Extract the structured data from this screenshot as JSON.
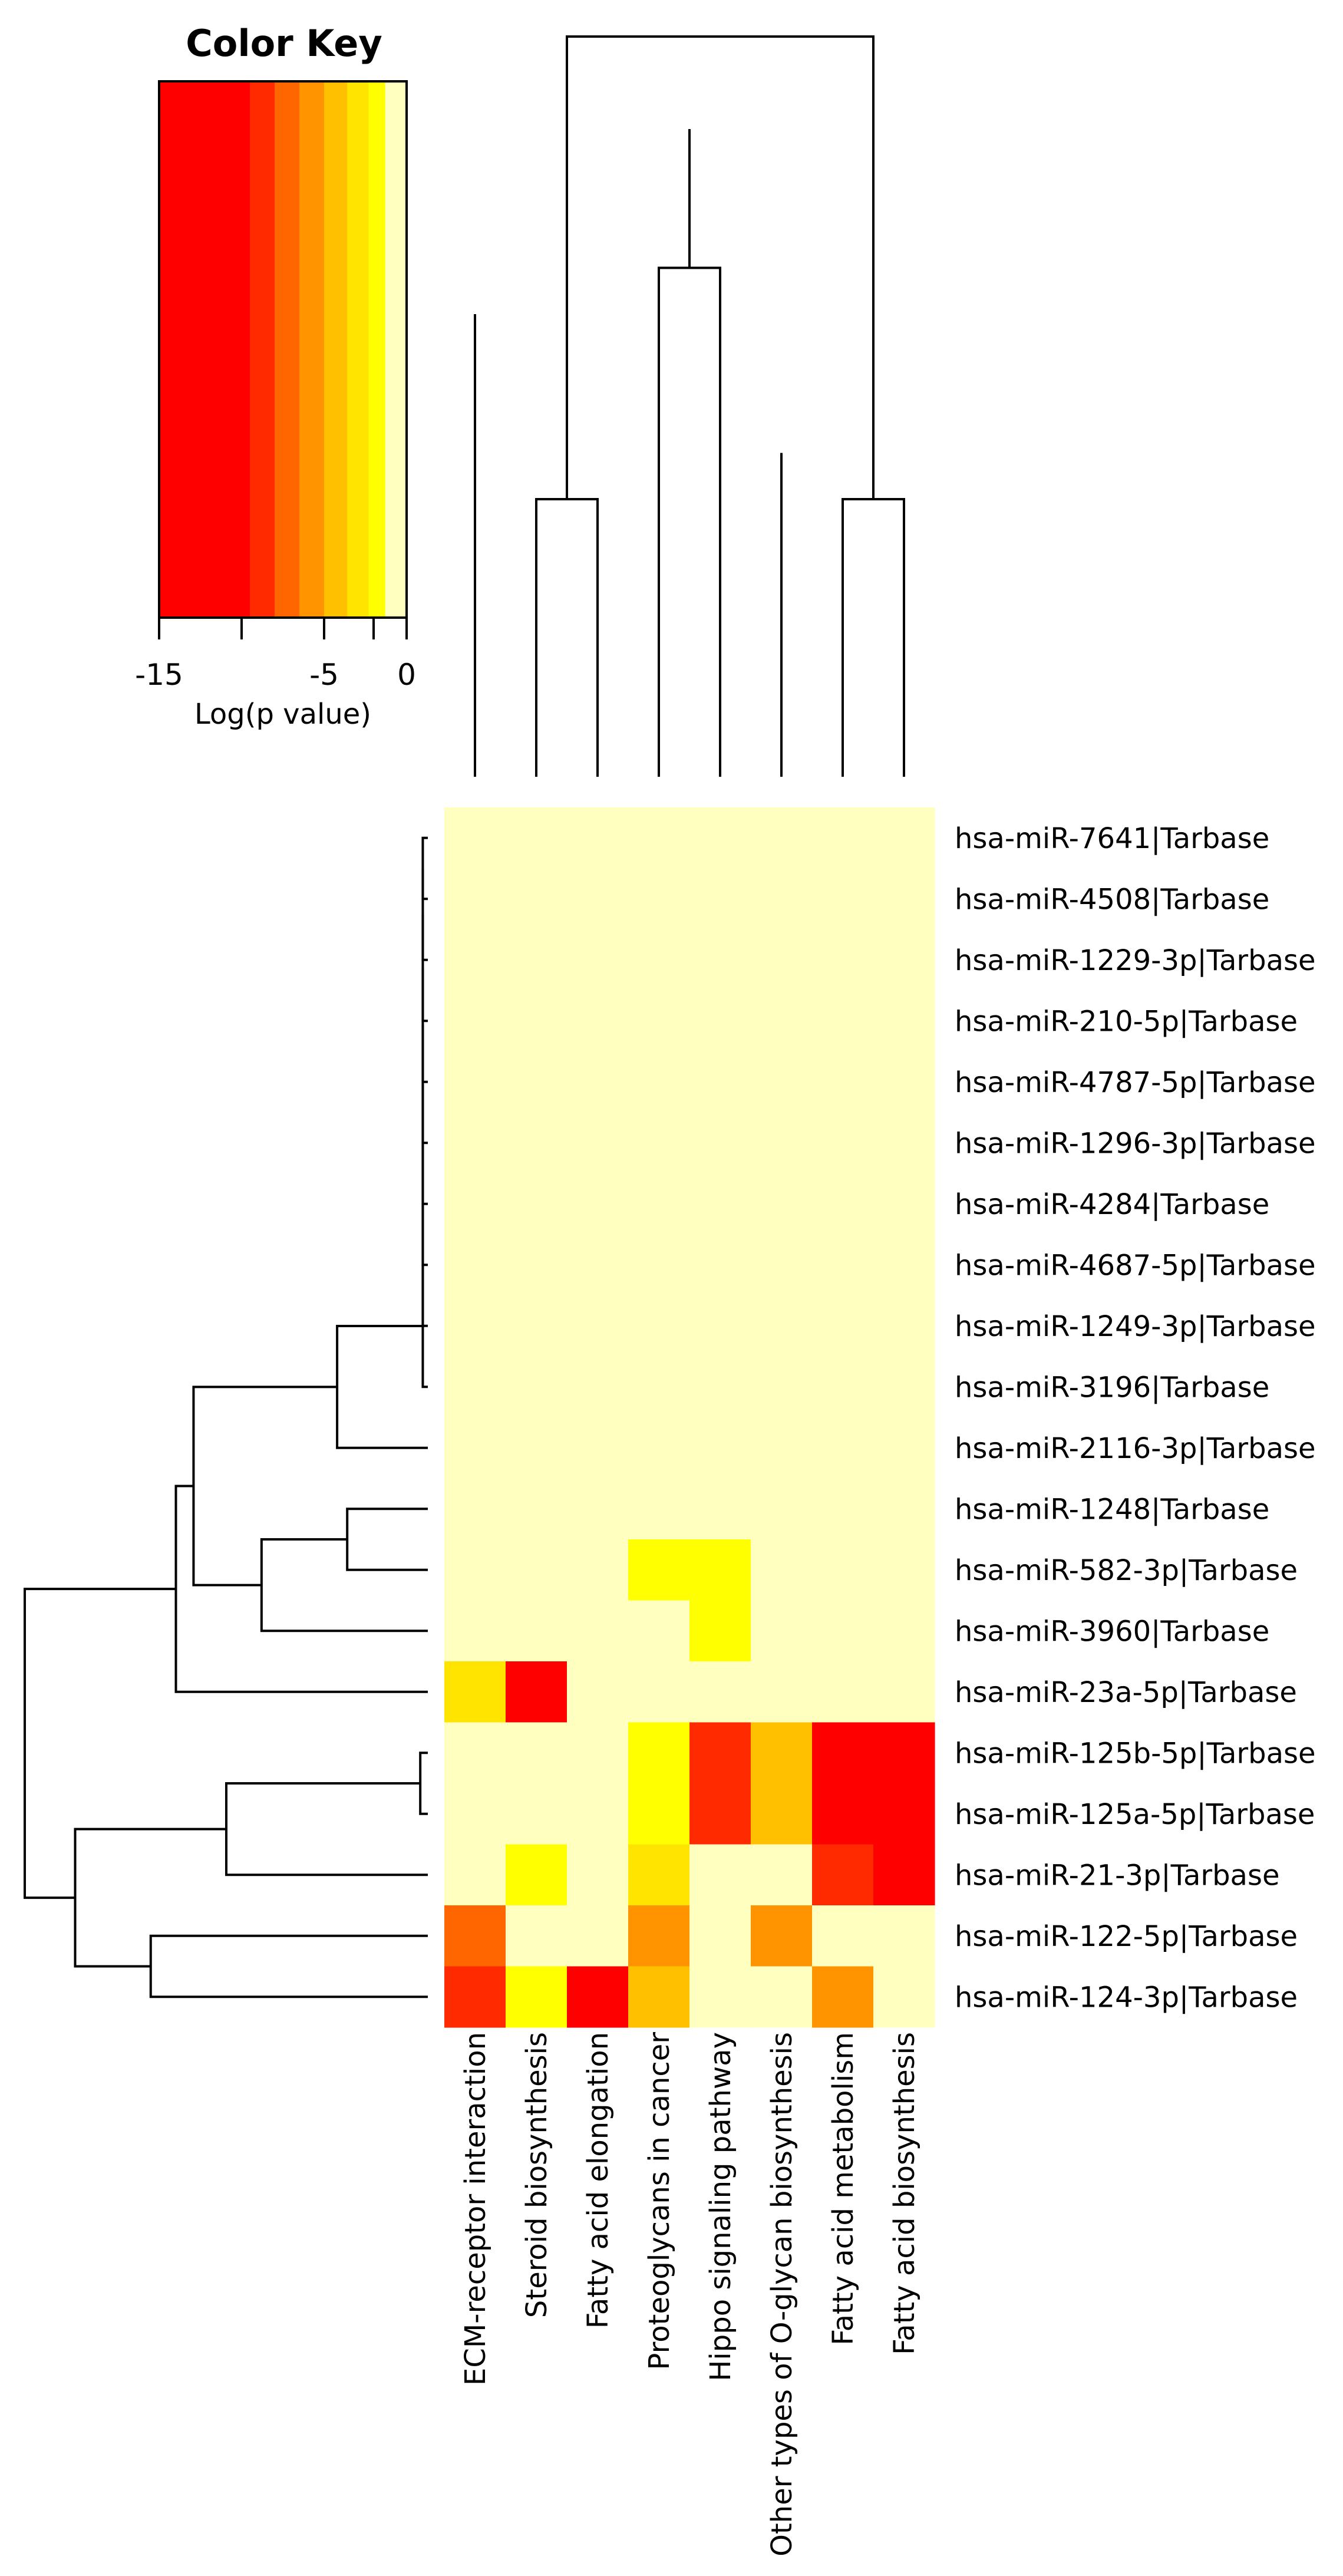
{
  "chart_data": {
    "type": "heatmap",
    "color_key": {
      "title": "Color Key",
      "xlabel": "Log(p value)",
      "ticks": [
        -15,
        -10,
        -5,
        -2,
        0
      ],
      "tick_labels": [
        "-15",
        "",
        "-5",
        "",
        "0"
      ],
      "range": [
        -15,
        0
      ],
      "bands": [
        {
          "from": -15,
          "to": -9.5,
          "color": "#FF0000"
        },
        {
          "from": -9.5,
          "to": -8,
          "color": "#FF2A00"
        },
        {
          "from": -8,
          "to": -6.5,
          "color": "#FF6600"
        },
        {
          "from": -6.5,
          "to": -5,
          "color": "#FF9400"
        },
        {
          "from": -5,
          "to": -3.6,
          "color": "#FFC000"
        },
        {
          "from": -3.6,
          "to": -2.3,
          "color": "#FFE400"
        },
        {
          "from": -2.3,
          "to": -1.3,
          "color": "#FFFF00"
        },
        {
          "from": -1.3,
          "to": 0,
          "color": "#FFFFC0"
        }
      ]
    },
    "columns": [
      "ECM-receptor interaction",
      "Steroid biosynthesis",
      "Fatty acid elongation",
      "Proteoglycans in cancer",
      "Hippo signaling pathway",
      "Other types of O-glycan biosynthesis",
      "Fatty acid metabolism",
      "Fatty acid biosynthesis"
    ],
    "rows": [
      "hsa-miR-7641|Tarbase",
      "hsa-miR-4508|Tarbase",
      "hsa-miR-1229-3p|Tarbase",
      "hsa-miR-210-5p|Tarbase",
      "hsa-miR-4787-5p|Tarbase",
      "hsa-miR-1296-3p|Tarbase",
      "hsa-miR-4284|Tarbase",
      "hsa-miR-4687-5p|Tarbase",
      "hsa-miR-1249-3p|Tarbase",
      "hsa-miR-3196|Tarbase",
      "hsa-miR-2116-3p|Tarbase",
      "hsa-miR-1248|Tarbase",
      "hsa-miR-582-3p|Tarbase",
      "hsa-miR-3960|Tarbase",
      "hsa-miR-23a-5p|Tarbase",
      "hsa-miR-125b-5p|Tarbase",
      "hsa-miR-125a-5p|Tarbase",
      "hsa-miR-21-3p|Tarbase",
      "hsa-miR-122-5p|Tarbase",
      "hsa-miR-124-3p|Tarbase"
    ],
    "values": [
      [
        0,
        0,
        0,
        0,
        0,
        0,
        0,
        0
      ],
      [
        0,
        0,
        0,
        0,
        0,
        0,
        0,
        0
      ],
      [
        0,
        0,
        0,
        0,
        0,
        0,
        0,
        0
      ],
      [
        0,
        0,
        0,
        0,
        0,
        0,
        0,
        0
      ],
      [
        0,
        0,
        0,
        0,
        0,
        0,
        0,
        0
      ],
      [
        0,
        0,
        0,
        0,
        0,
        0,
        0,
        0
      ],
      [
        0,
        0,
        0,
        0,
        0,
        0,
        0,
        0
      ],
      [
        0,
        0,
        0,
        0,
        0,
        0,
        0,
        0
      ],
      [
        0,
        0,
        0,
        0,
        0,
        0,
        0,
        0
      ],
      [
        0,
        0,
        0,
        0,
        0,
        0,
        0,
        0
      ],
      [
        0,
        0,
        0,
        0,
        0,
        0,
        0,
        0
      ],
      [
        0,
        0,
        0,
        0,
        0,
        0,
        0,
        0
      ],
      [
        0,
        0,
        0,
        -2,
        -2,
        0,
        0,
        0
      ],
      [
        0,
        0,
        0,
        0,
        -2,
        0,
        0,
        0
      ],
      [
        -3.5,
        -12,
        0,
        0,
        0,
        0,
        0,
        0
      ],
      [
        0,
        0,
        0,
        -2,
        -8.5,
        -4.5,
        -14,
        -14
      ],
      [
        0,
        0,
        0,
        -2,
        -8.5,
        -4.5,
        -14,
        -14
      ],
      [
        0,
        -2,
        0,
        -3.5,
        0,
        0,
        -9,
        -14
      ],
      [
        -7,
        0,
        0,
        -5.5,
        0,
        -5.5,
        0,
        0
      ],
      [
        -9,
        -2,
        -12,
        -4.5,
        0,
        0,
        -5.5,
        0
      ]
    ],
    "column_dendrogram": [
      {
        "a": 1,
        "b": 2,
        "h": 0.6
      },
      {
        "a": 6,
        "b": 7,
        "h": 0.6
      },
      {
        "a": 0,
        "b": 12,
        "h": 1.0
      },
      {
        "a": 3,
        "b": 4,
        "h": 1.1
      },
      {
        "a": 5,
        "b": 13,
        "h": 0.7
      },
      {
        "a": 11,
        "b": 10,
        "h": 1.4
      },
      {
        "a": 8,
        "b": 9,
        "h": 1.6
      }
    ],
    "row_dendrogram": [
      {
        "a": 0,
        "b": 1,
        "h": 0.02
      },
      {
        "a": 20,
        "b": 2,
        "h": 0.02
      },
      {
        "a": 21,
        "b": 3,
        "h": 0.02
      },
      {
        "a": 22,
        "b": 4,
        "h": 0.02
      },
      {
        "a": 23,
        "b": 5,
        "h": 0.02
      },
      {
        "a": 24,
        "b": 6,
        "h": 0.02
      },
      {
        "a": 25,
        "b": 7,
        "h": 0.02
      },
      {
        "a": 26,
        "b": 8,
        "h": 0.02
      },
      {
        "a": 27,
        "b": 9,
        "h": 0.02
      },
      {
        "a": 11,
        "b": 12,
        "h": 0.32
      },
      {
        "a": 28,
        "b": 10,
        "h": 0.36
      },
      {
        "a": 29,
        "b": 13,
        "h": 0.66
      },
      {
        "a": 30,
        "b": 31,
        "h": 0.93
      },
      {
        "a": 32,
        "b": 14,
        "h": 1.0
      },
      {
        "a": 15,
        "b": 16,
        "h": 0.03
      },
      {
        "a": 34,
        "b": 17,
        "h": 0.8
      },
      {
        "a": 18,
        "b": 19,
        "h": 1.1
      },
      {
        "a": 35,
        "b": 36,
        "h": 1.4
      },
      {
        "a": 33,
        "b": 37,
        "h": 1.6
      }
    ]
  }
}
